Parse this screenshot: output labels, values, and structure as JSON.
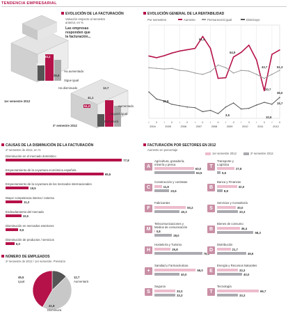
{
  "header": {
    "tag": "TENDENCIA EMPRESARIAL"
  },
  "facturacion": {
    "title": "EVOLUCIÓN DE LA FACTURACIÓN",
    "subtitle_1": "Variación respecto al semestre",
    "subtitle_2": "anterior, en %",
    "question_1": "Las empresas",
    "question_2": "responden que",
    "question_3": "la facturación...",
    "s1": {
      "label": "1er semestre 2012",
      "aumentado": 11.4,
      "sigue_igual": 35.5,
      "disminuido": 53.1,
      "labels": [
        "Ha aumentado",
        "Sigue igual",
        "Ha disminuido"
      ]
    },
    "s2": {
      "label": "2º semestre 2012",
      "aumentado": 12.7,
      "sigue_igual": 41.1,
      "disminuido": 51.0,
      "labels": [
        "Aumentado",
        "Seguirá igual",
        "Disminuirá"
      ]
    },
    "values_printed": [
      "11,4",
      "35,5",
      "53,1",
      "12,7",
      "41,1",
      "51,0"
    ]
  },
  "rentabilidad": {
    "title": "EVOLUCIÓN GENERAL DE LA RENTABILIDAD",
    "legend": {
      "period": "Por semestres",
      "s1": "Aumento",
      "s2": "Permanecerá igual",
      "s3": "Disminuye"
    },
    "annotations": [
      "61,4",
      "54,9",
      "43,7",
      "51,3",
      "20,7",
      "36,0",
      "19,8",
      "3,5",
      "10,6",
      "15,7"
    ]
  },
  "chart_data": [
    {
      "type": "line",
      "title": "EVOLUCIÓN GENERAL DE LA RENTABILIDAD",
      "x": [
        "I-04",
        "II-04",
        "I-05",
        "II-05",
        "I-06",
        "II-06",
        "I-07",
        "II-07",
        "I-08",
        "II-08",
        "I-09",
        "II-09",
        "I-10",
        "II-10",
        "I-11",
        "II-11",
        "I-12",
        "II-12"
      ],
      "x_years": [
        "2004",
        "2005",
        "2006",
        "2007",
        "2008",
        "2009",
        "2010",
        "2011",
        "2012"
      ],
      "ylim": [
        0,
        70
      ],
      "series": [
        {
          "name": "Aumento",
          "color": "#b5124a",
          "values": [
            46.8,
            45.5,
            47.0,
            49.0,
            50.5,
            51.5,
            52.5,
            61.4,
            52.5,
            30.0,
            30.5,
            46.0,
            49.5,
            54.9,
            43.7,
            20.7,
            48.0,
            51.3
          ]
        },
        {
          "name": "Permanecerá igual",
          "color": "#999999",
          "values": [
            38.0,
            37.5,
            37.0,
            37.5,
            36.0,
            35.5,
            34.0,
            33.0,
            35.0,
            40.0,
            38.0,
            34.0,
            36.0,
            35.5,
            33.0,
            30.0,
            33.0,
            36.0
          ]
        },
        {
          "name": "Disminuye",
          "color": "#555555",
          "values": [
            19.8,
            14.5,
            13.0,
            10.5,
            9.5,
            8.5,
            8.0,
            5.0,
            6.0,
            3.5,
            8.5,
            11.5,
            7.0,
            7.5,
            10.0,
            12.0,
            10.6,
            15.7
          ]
        }
      ]
    },
    {
      "type": "bar",
      "title": "CAUSAS DE LA DISMINUCIÓN DE LA FACTURACIÓN",
      "subtitle": "2º semestre de 2012, en %",
      "categories": [
        "Disminución en el mercado doméstico",
        "Empeoramiento de la coyuntura económica española",
        "Empeoramiento de la coyuntura de los mercados internacionales",
        "Mayor competencia interna / externa",
        "Endeudamiento del mercado",
        "Disminución en mercados exteriores",
        "Disminución de productos / servicios"
      ],
      "values": [
        77.8,
        65.5,
        15.5,
        11.2,
        10.5,
        8.5,
        6.0
      ],
      "labels": [
        "77,8",
        "65,5",
        "15,5",
        "11,2",
        "10,5",
        "8,5",
        "6,0"
      ],
      "xlim": [
        0,
        80
      ]
    },
    {
      "type": "pie",
      "title": "NÚMERO DE EMPLEADOS",
      "subtitle": "2º semestre de 2012 / 1er semestre. Previsión",
      "categories": [
        "Aumentará",
        "Igual",
        "Disminuirá"
      ],
      "values": [
        12.7,
        45.5,
        41.8
      ],
      "labels": [
        "12,7",
        "45,5",
        "41,8"
      ]
    },
    {
      "type": "bar",
      "title": "FACTURACIÓN POR SECTORES EN 2012",
      "subtitle": "Aumento en porcentaje",
      "series_names": [
        "1er semestre 2012",
        "2º semestre 2012"
      ],
      "sectors": [
        {
          "name": [
            "Agricultura, ganadería,",
            "minería y pesca"
          ],
          "icon": "A",
          "s1": 63.0,
          "s2": 64.5
        },
        {
          "name": [
            "Transporte y",
            "Logística"
          ],
          "icon": "T",
          "s1": 27.8,
          "s2": 5.6
        },
        {
          "name": [
            "Construcción y contratas"
          ],
          "icon": "C",
          "s1": 11.8,
          "s2": 23.6
        },
        {
          "name": [
            "Banca y Finanzas"
          ],
          "icon": "B",
          "s1": 32.0,
          "s2": 8.8
        },
        {
          "name": [
            "Fabricantes"
          ],
          "icon": "F",
          "s1": 50.2,
          "s2": 40.3
        },
        {
          "name": [
            "Servicios y Consultoría"
          ],
          "icon": "S",
          "s1": 30.0,
          "s2": 33.3
        },
        {
          "name": [
            "Telecomunicaciones y",
            "Medios de comunicación"
          ],
          "icon": "M",
          "s1": 0.8,
          "s2": 28.0
        },
        {
          "name": [
            "Bienes de consumo"
          ],
          "icon": "B",
          "s1": 36.4,
          "s2": 58.3
        },
        {
          "name": [
            "Hostelería y Turismo"
          ],
          "icon": "H",
          "s1": 25.8,
          "s2": 76.3
        },
        {
          "name": [
            "Distribución"
          ],
          "icon": "D",
          "s1": 21.7,
          "s2": 46.6
        },
        {
          "name": [
            "Sanidad y Farmacéuticas"
          ],
          "icon": "+",
          "s1": 66.0,
          "s2": 40.0
        },
        {
          "name": [
            "Energía y Recursos Naturales"
          ],
          "icon": "E",
          "s1": 33.3,
          "s2": 40.0
        },
        {
          "name": [
            "Seguros"
          ],
          "icon": "S",
          "s1": 33.3,
          "s2": 33.3
        },
        {
          "name": [
            "Tecnología"
          ],
          "icon": "T",
          "s1": 66.7,
          "s2": 33.3
        }
      ]
    }
  ]
}
